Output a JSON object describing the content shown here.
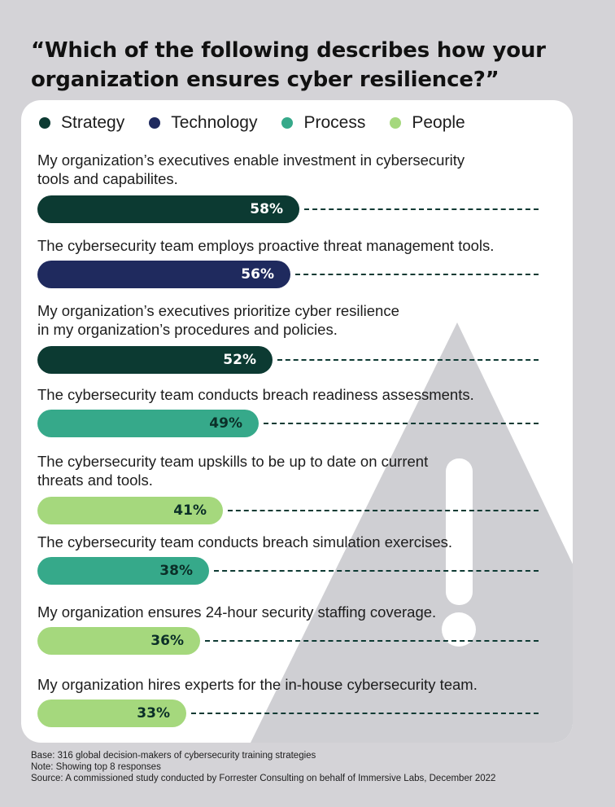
{
  "title_line1": "“Which of the following describes how your",
  "title_line2": "organization ensures cyber resilience?”",
  "legend": [
    {
      "label": "Strategy",
      "color": "#0c3a32"
    },
    {
      "label": "Technology",
      "color": "#1f2a5e"
    },
    {
      "label": "Process",
      "color": "#36a98a"
    },
    {
      "label": "People",
      "color": "#a5d87d"
    }
  ],
  "chart_data": {
    "type": "bar",
    "orientation": "horizontal",
    "x_range": [
      0,
      100
    ],
    "unit": "%",
    "categories": [
      "My organization’s executives enable investment in cybersecurity\ntools and capabilites.",
      "The cybersecurity team employs proactive threat management tools.",
      "My organization’s executives prioritize cyber resilience\nin my organization’s procedures and policies.",
      "The cybersecurity team conducts breach readiness assessments.",
      "The cybersecurity team upskills to be up to date on current\nthreats and tools.",
      "The cybersecurity team conducts breach simulation exercises.",
      "My organization ensures 24-hour security staffing coverage.",
      "My organization hires experts for the in-house cybersecurity team."
    ],
    "values": [
      58,
      56,
      52,
      49,
      41,
      38,
      36,
      33
    ],
    "value_labels": [
      "58%",
      "56%",
      "52%",
      "49%",
      "41%",
      "38%",
      "36%",
      "33%"
    ],
    "groups": [
      "Strategy",
      "Technology",
      "Strategy",
      "Process",
      "People",
      "Process",
      "People",
      "People"
    ]
  },
  "footnotes": [
    "Base: 316 global decision-makers of cybersecurity training strategies",
    "Note: Showing top 8 responses",
    "Source: A commissioned study conducted by Forrester Consulting on behalf of Immersive Labs, December 2022"
  ]
}
